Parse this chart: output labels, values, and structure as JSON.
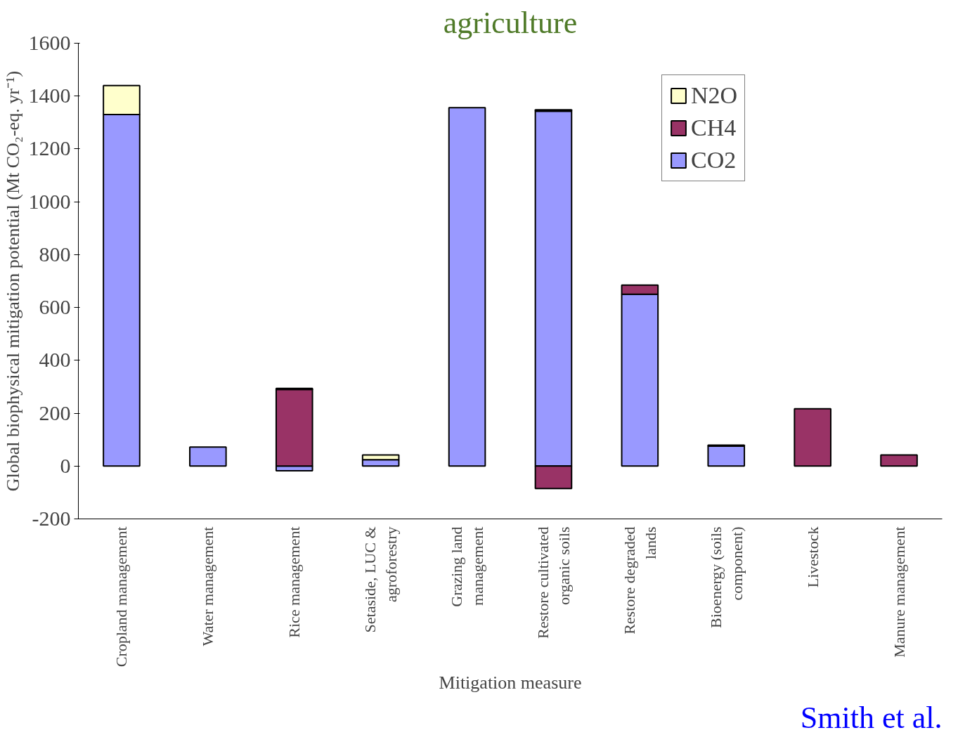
{
  "chart_data": {
    "type": "bar",
    "stacked": true,
    "title": "agriculture",
    "xlabel": "Mitigation measure",
    "ylabel": "Global biophysical mitigation potential (Mt CO₂-eq. yr⁻¹)",
    "categories": [
      "Cropland management",
      "Water management",
      "Rice management",
      "Setaside, LUC &\nagroforestry",
      "Grazing land\nmanagement",
      "Restore cultivated\norganic soils",
      "Restore degraded\nlands",
      "Bioenergy (soils\ncomponent)",
      "Livestock",
      "Manure management"
    ],
    "series": [
      {
        "name": "CO2",
        "color": "#9999ff",
        "values": [
          1330,
          72,
          -18,
          24,
          1356,
          1343,
          650,
          75,
          null,
          null
        ]
      },
      {
        "name": "CH4",
        "color": "#993366",
        "values": [
          null,
          null,
          290,
          null,
          null,
          -85,
          35,
          null,
          217,
          42
        ]
      },
      {
        "name": "N2O",
        "color": "#ffffcc",
        "values": [
          110,
          null,
          4,
          18,
          null,
          5,
          null,
          4,
          null,
          null
        ]
      }
    ],
    "ylim": [
      -200,
      1600
    ],
    "yticks": [
      -200,
      0,
      200,
      400,
      600,
      800,
      1000,
      1200,
      1400,
      1600
    ],
    "grid": false,
    "legend": "top right",
    "annotations": [
      "Smith et al."
    ]
  }
}
